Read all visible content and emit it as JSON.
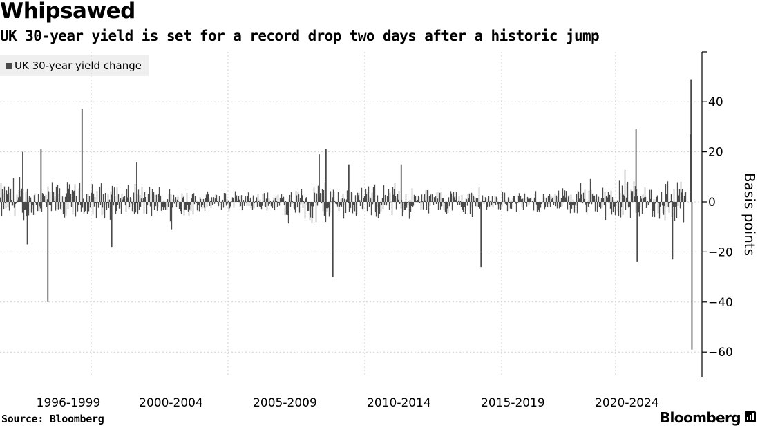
{
  "header": {
    "title": "Whipsawed",
    "subtitle": "UK 30-year yield is set for a record drop two days after a historic jump"
  },
  "legend": {
    "label": "UK 30-year yield change"
  },
  "footer": {
    "source": "Source: Bloomberg",
    "brand": "Bloomberg",
    "brand_icon": "bloomberg-chart-icon"
  },
  "colors": {
    "bars": "#4a4a4a",
    "grid": "#cfcfcf",
    "axis": "#000000",
    "legend_bg": "#efefef"
  },
  "chart_data": {
    "type": "bar",
    "title": "Whipsawed",
    "subtitle": "UK 30-year yield is set for a record drop two days after a historic jump",
    "xlabel": "",
    "ylabel": "Basis points",
    "ylim": [
      -70,
      60
    ],
    "yticks": [
      40,
      20,
      0,
      -20,
      -40,
      -60
    ],
    "xlim_years": [
      1995.0,
      2025.7
    ],
    "x_category_labels": [
      {
        "label": "1996-1999",
        "center_year": 1998.0
      },
      {
        "label": "2000-2004",
        "center_year": 2002.5
      },
      {
        "label": "2005-2009",
        "center_year": 2007.5
      },
      {
        "label": "2010-2014",
        "center_year": 2012.5
      },
      {
        "label": "2015-2019",
        "center_year": 2017.5
      },
      {
        "label": "2020-2024",
        "center_year": 2022.5
      }
    ],
    "x_gridlines_years": [
      1999.0,
      2005.0,
      2011.0,
      2017.0,
      2022.0
    ],
    "grid": true,
    "legend_position": "top-left",
    "series": [
      {
        "name": "UK 30-year yield change",
        "note": "Daily changes; noise band approximated, notable spikes listed",
        "volatility_bands": [
          {
            "from": 1995.0,
            "to": 1999.5,
            "typical_abs": 7
          },
          {
            "from": 1999.5,
            "to": 2003.5,
            "typical_abs": 6
          },
          {
            "from": 2003.5,
            "to": 2007.5,
            "typical_abs": 3.5
          },
          {
            "from": 2007.5,
            "to": 2008.3,
            "typical_abs": 5
          },
          {
            "from": 2008.3,
            "to": 2009.5,
            "typical_abs": 8
          },
          {
            "from": 2009.5,
            "to": 2012.5,
            "typical_abs": 6
          },
          {
            "from": 2012.5,
            "to": 2016.0,
            "typical_abs": 5
          },
          {
            "from": 2016.0,
            "to": 2019.5,
            "typical_abs": 3.5
          },
          {
            "from": 2019.5,
            "to": 2021.5,
            "typical_abs": 5
          },
          {
            "from": 2021.5,
            "to": 2024.0,
            "typical_abs": 7
          },
          {
            "from": 2024.0,
            "to": 2025.7,
            "typical_abs": 9
          }
        ],
        "spikes": [
          {
            "year": 1996.0,
            "value": 20
          },
          {
            "year": 1996.2,
            "value": -17
          },
          {
            "year": 1996.8,
            "value": 21
          },
          {
            "year": 1997.1,
            "value": -40
          },
          {
            "year": 1998.6,
            "value": 37
          },
          {
            "year": 1999.9,
            "value": -18
          },
          {
            "year": 2001.0,
            "value": 16
          },
          {
            "year": 2009.0,
            "value": 19
          },
          {
            "year": 2009.3,
            "value": 21
          },
          {
            "year": 2009.6,
            "value": -30
          },
          {
            "year": 2010.3,
            "value": 15
          },
          {
            "year": 2012.6,
            "value": 15
          },
          {
            "year": 2016.1,
            "value": -26
          },
          {
            "year": 2022.9,
            "value": 29
          },
          {
            "year": 2022.95,
            "value": -24
          },
          {
            "year": 2024.5,
            "value": -23
          },
          {
            "year": 2025.28,
            "value": 27
          },
          {
            "year": 2025.31,
            "value": 49
          },
          {
            "year": 2025.35,
            "value": -59
          }
        ]
      }
    ]
  }
}
